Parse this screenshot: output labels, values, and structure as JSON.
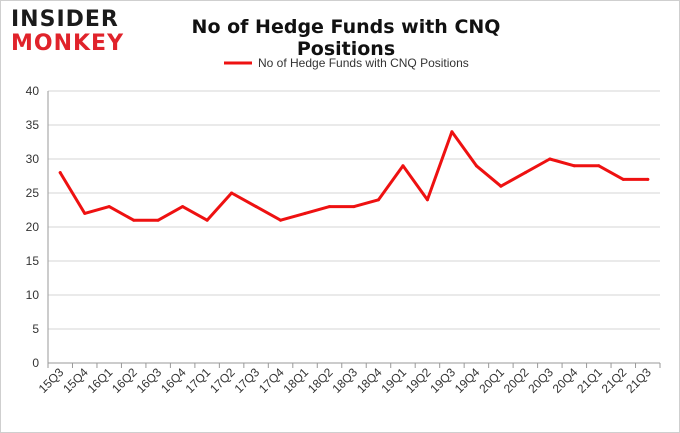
{
  "logo": {
    "line1": "INSIDER",
    "line2": "MONKEY"
  },
  "colors": {
    "series": "#ee1111",
    "grid": "#d6d6d6",
    "axis": "#999999"
  },
  "chart_data": {
    "type": "line",
    "title": "No of Hedge Funds with CNQ Positions",
    "xlabel": "",
    "ylabel": "",
    "ylim": [
      0,
      40
    ],
    "yticks": [
      0,
      5,
      10,
      15,
      20,
      25,
      30,
      35,
      40
    ],
    "grid": true,
    "legend_position": "top",
    "categories": [
      "15Q3",
      "15Q4",
      "16Q1",
      "16Q2",
      "16Q3",
      "16Q4",
      "17Q1",
      "17Q2",
      "17Q3",
      "17Q4",
      "18Q1",
      "18Q2",
      "18Q3",
      "18Q4",
      "19Q1",
      "19Q2",
      "19Q3",
      "19Q4",
      "20Q1",
      "20Q2",
      "20Q3",
      "20Q4",
      "21Q1",
      "21Q2",
      "21Q3"
    ],
    "series": [
      {
        "name": "No of Hedge Funds with CNQ Positions",
        "values": [
          28,
          22,
          23,
          21,
          21,
          23,
          21,
          25,
          23,
          21,
          22,
          23,
          23,
          24,
          29,
          24,
          34,
          29,
          26,
          28,
          30,
          29,
          29,
          27,
          27
        ]
      }
    ]
  }
}
